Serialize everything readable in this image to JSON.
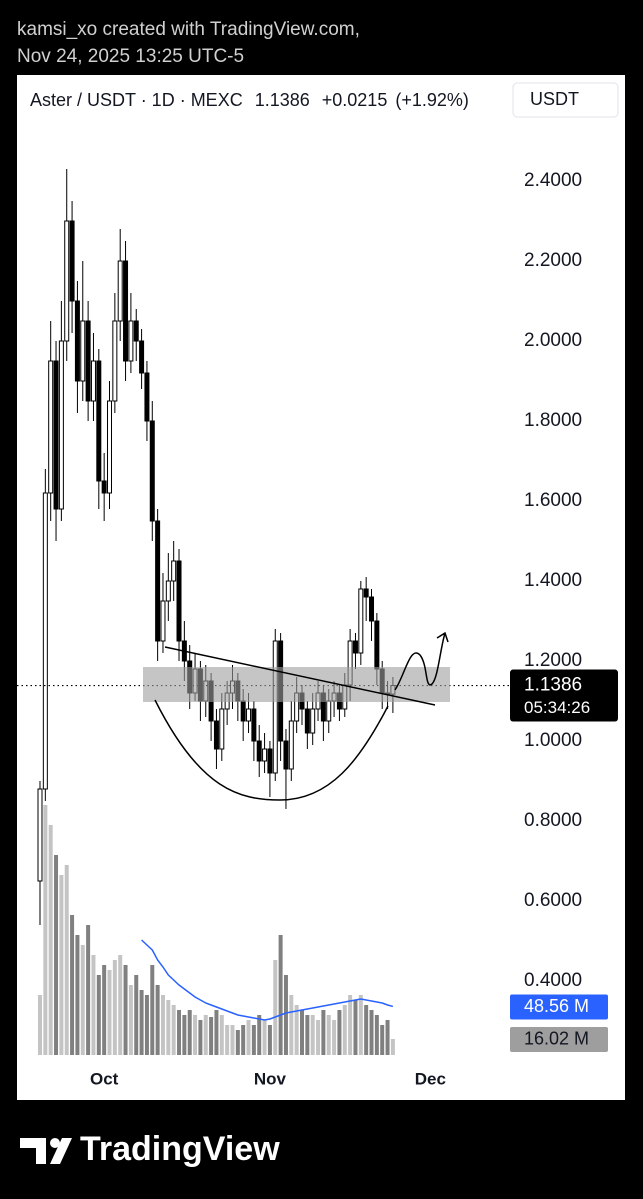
{
  "header": {
    "attribution": "kamsi_xo created with TradingView.com,",
    "timestamp": "Nov 24, 2025 13:25 UTC-5"
  },
  "footer": {
    "brand": "TradingView"
  },
  "chart_data": {
    "type": "candlestick",
    "title": "Aster / USDT · 1D · MEXC",
    "last_price": 1.1386,
    "change": {
      "value": 0.0215,
      "label": "+0.0215"
    },
    "change_pct": {
      "value": 1.92,
      "label": "(+1.92%)"
    },
    "currency": "USDT",
    "countdown": "05:34:26",
    "up_color": "#ffffff",
    "down_color": "#000000",
    "outline_color": "#000000",
    "volume_up_color": "#c4c4c4",
    "volume_down_color": "#808080",
    "ma_color": "#2962ff",
    "xlim": [
      -4.3,
      87.9
    ],
    "xticks": [
      {
        "value": 12,
        "label": "Oct"
      },
      {
        "value": 43,
        "label": "Nov"
      },
      {
        "value": 73,
        "label": "Dec"
      }
    ],
    "ylim": [
      0.2,
      2.55
    ],
    "yticks": [
      {
        "value": 0.4,
        "label": "0.4000"
      },
      {
        "value": 0.6,
        "label": "0.6000"
      },
      {
        "value": 0.8,
        "label": "0.8000"
      },
      {
        "value": 1.0,
        "label": "1.0000"
      },
      {
        "value": 1.2,
        "label": "1.2000"
      },
      {
        "value": 1.4,
        "label": "1.4000"
      },
      {
        "value": 1.6,
        "label": "1.6000"
      },
      {
        "value": 1.8,
        "label": "1.8000"
      },
      {
        "value": 2.0,
        "label": "2.0000"
      },
      {
        "value": 2.2,
        "label": "2.2000"
      },
      {
        "value": 2.4,
        "label": "2.4000"
      }
    ],
    "open": [
      0.65,
      0.88,
      1.62,
      1.95,
      1.58,
      2.0,
      2.3,
      2.1,
      1.9,
      2.05,
      1.85,
      1.95,
      1.65,
      1.62,
      1.85,
      2.05,
      2.2,
      1.95,
      2.05,
      2.0,
      1.92,
      1.8,
      1.55,
      1.25,
      1.35,
      1.4,
      1.45,
      1.25,
      1.2,
      1.12,
      1.18,
      1.1,
      1.15,
      1.05,
      0.98,
      1.08,
      1.12,
      1.15,
      1.1,
      1.05,
      1.08,
      1.0,
      0.95,
      0.98,
      0.92,
      1.25,
      1.0,
      0.93,
      1.05,
      1.12,
      1.08,
      1.02,
      1.08,
      1.12,
      1.05,
      1.1,
      1.12,
      1.08,
      1.14,
      1.25,
      1.22,
      1.38,
      1.36,
      1.3,
      1.18,
      1.12,
      1.1171
    ],
    "high": [
      0.9,
      1.68,
      2.05,
      2.0,
      2.1,
      2.43,
      2.35,
      2.15,
      2.2,
      2.1,
      2.02,
      1.98,
      1.72,
      1.9,
      2.12,
      2.28,
      2.25,
      2.12,
      2.08,
      2.03,
      1.95,
      1.85,
      1.58,
      1.42,
      1.47,
      1.5,
      1.48,
      1.3,
      1.24,
      1.22,
      1.2,
      1.19,
      1.17,
      1.08,
      1.12,
      1.15,
      1.19,
      1.17,
      1.13,
      1.12,
      1.1,
      1.04,
      1.02,
      1.0,
      1.28,
      1.27,
      1.03,
      1.1,
      1.16,
      1.14,
      1.1,
      1.12,
      1.15,
      1.14,
      1.13,
      1.15,
      1.14,
      1.17,
      1.28,
      1.27,
      1.4,
      1.41,
      1.38,
      1.32,
      1.2,
      1.15,
      1.16
    ],
    "low": [
      0.54,
      0.85,
      1.55,
      1.5,
      1.55,
      1.95,
      2.02,
      1.82,
      1.85,
      1.8,
      1.8,
      1.58,
      1.55,
      1.58,
      1.82,
      2.0,
      1.9,
      1.92,
      1.95,
      1.88,
      1.75,
      1.5,
      1.2,
      1.22,
      1.3,
      1.35,
      1.2,
      1.15,
      1.08,
      1.1,
      1.05,
      1.06,
      1.0,
      0.93,
      0.95,
      1.04,
      1.08,
      1.05,
      1.0,
      1.02,
      0.95,
      0.91,
      0.92,
      0.86,
      0.9,
      0.95,
      0.83,
      0.9,
      1.02,
      1.04,
      0.98,
      0.99,
      1.05,
      1.0,
      1.02,
      1.06,
      1.05,
      1.06,
      1.1,
      1.18,
      1.19,
      1.3,
      1.25,
      1.14,
      1.08,
      1.08,
      1.07
    ],
    "close": [
      0.88,
      1.62,
      1.95,
      1.58,
      2.0,
      2.3,
      2.1,
      1.9,
      2.05,
      1.85,
      1.95,
      1.65,
      1.62,
      1.85,
      2.05,
      2.2,
      1.95,
      2.05,
      2.0,
      1.92,
      1.8,
      1.55,
      1.25,
      1.35,
      1.4,
      1.45,
      1.25,
      1.2,
      1.12,
      1.18,
      1.1,
      1.15,
      1.05,
      0.98,
      1.08,
      1.12,
      1.15,
      1.1,
      1.05,
      1.08,
      1.0,
      0.95,
      0.98,
      0.92,
      1.25,
      1.0,
      0.93,
      1.05,
      1.12,
      1.08,
      1.02,
      1.08,
      1.12,
      1.05,
      1.1,
      1.12,
      1.08,
      1.14,
      1.25,
      1.22,
      1.38,
      1.36,
      1.3,
      1.18,
      1.12,
      1.1171,
      1.1386
    ],
    "volume_ylim": [
      0,
      300
    ],
    "volume": [
      60,
      250,
      230,
      200,
      180,
      190,
      140,
      120,
      110,
      130,
      100,
      80,
      90,
      85,
      95,
      100,
      90,
      70,
      80,
      65,
      60,
      90,
      70,
      60,
      55,
      50,
      45,
      40,
      45,
      40,
      35,
      40,
      38,
      45,
      40,
      30,
      30,
      25,
      30,
      35,
      30,
      40,
      35,
      30,
      95,
      120,
      80,
      60,
      50,
      45,
      40,
      40,
      35,
      45,
      40,
      35,
      45,
      50,
      60,
      55,
      60,
      50,
      45,
      40,
      30,
      35,
      16.02
    ],
    "volume_ma": [
      null,
      null,
      null,
      null,
      null,
      null,
      null,
      null,
      null,
      null,
      null,
      null,
      null,
      null,
      null,
      null,
      null,
      null,
      null,
      115,
      110,
      105,
      95,
      88,
      80,
      75,
      70,
      66,
      62,
      58,
      55,
      52,
      50,
      48,
      46,
      44,
      42,
      40,
      39,
      38,
      37,
      36,
      35,
      36,
      38,
      40,
      42,
      43,
      44,
      45,
      46,
      47,
      48,
      49,
      50,
      51,
      52,
      53,
      54,
      55,
      56,
      55,
      54,
      53,
      52,
      50,
      48.56
    ],
    "volume_ma_last": {
      "value": 48.56,
      "label": "48.56 M"
    },
    "volume_last": {
      "value": 16.02,
      "label": "16.02 M"
    }
  }
}
